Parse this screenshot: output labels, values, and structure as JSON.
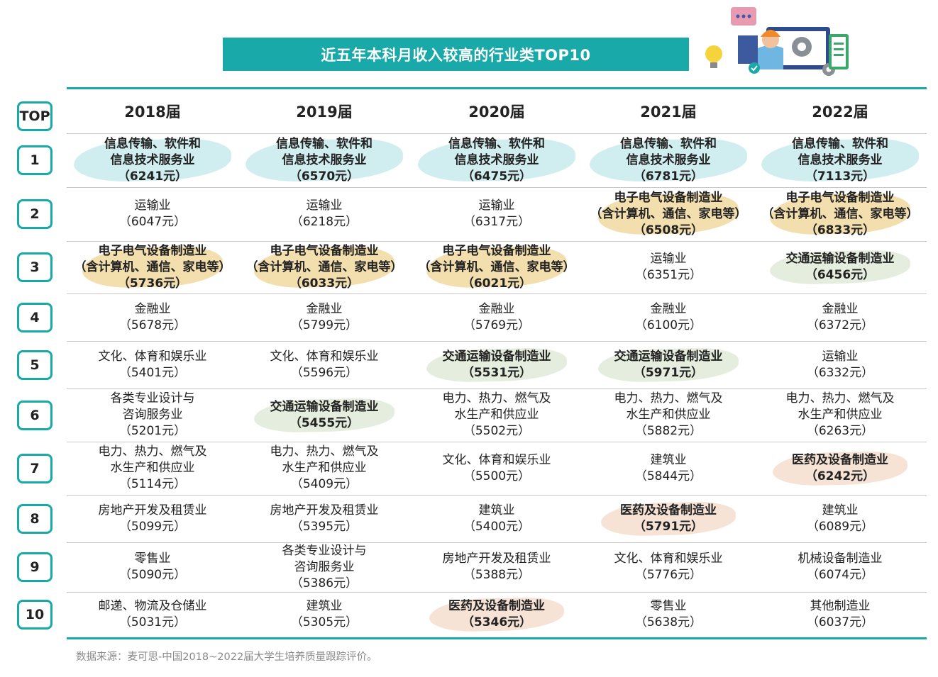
{
  "title": "近五年本科月收入较高的行业类TOP10",
  "header": {
    "top_label": "TOP",
    "years": [
      "2018届",
      "2019届",
      "2020届",
      "2021届",
      "2022届"
    ]
  },
  "rows": [
    {
      "rank": "1",
      "cells": [
        {
          "lines": [
            "信息传输、软件和",
            "信息技术服务业",
            "（6241元）"
          ],
          "highlight": "blue"
        },
        {
          "lines": [
            "信息传输、软件和",
            "信息技术服务业",
            "（6570元）"
          ],
          "highlight": "blue"
        },
        {
          "lines": [
            "信息传输、软件和",
            "信息技术服务业",
            "（6475元）"
          ],
          "highlight": "blue"
        },
        {
          "lines": [
            "信息传输、软件和",
            "信息技术服务业",
            "（6781元）"
          ],
          "highlight": "blue"
        },
        {
          "lines": [
            "信息传输、软件和",
            "信息技术服务业",
            "（7113元）"
          ],
          "highlight": "blue"
        }
      ]
    },
    {
      "rank": "2",
      "cells": [
        {
          "lines": [
            "运输业",
            "（6047元）"
          ],
          "highlight": ""
        },
        {
          "lines": [
            "运输业",
            "（6218元）"
          ],
          "highlight": ""
        },
        {
          "lines": [
            "运输业",
            "（6317元）"
          ],
          "highlight": ""
        },
        {
          "lines": [
            "电子电气设备制造业",
            "（含计算机、通信、家电等）",
            "（6508元）"
          ],
          "highlight": "yellow"
        },
        {
          "lines": [
            "电子电气设备制造业",
            "（含计算机、通信、家电等）",
            "（6833元）"
          ],
          "highlight": "yellow"
        }
      ]
    },
    {
      "rank": "3",
      "cells": [
        {
          "lines": [
            "电子电气设备制造业",
            "（含计算机、通信、家电等）",
            "（5736元）"
          ],
          "highlight": "yellow"
        },
        {
          "lines": [
            "电子电气设备制造业",
            "（含计算机、通信、家电等）",
            "（6033元）"
          ],
          "highlight": "yellow"
        },
        {
          "lines": [
            "电子电气设备制造业",
            "（含计算机、通信、家电等）",
            "（6021元）"
          ],
          "highlight": "yellow"
        },
        {
          "lines": [
            "运输业",
            "（6351元）"
          ],
          "highlight": ""
        },
        {
          "lines": [
            "交通运输设备制造业",
            "（6456元）"
          ],
          "highlight": "green"
        }
      ]
    },
    {
      "rank": "4",
      "cells": [
        {
          "lines": [
            "金融业",
            "（5678元）"
          ],
          "highlight": ""
        },
        {
          "lines": [
            "金融业",
            "（5799元）"
          ],
          "highlight": ""
        },
        {
          "lines": [
            "金融业",
            "（5769元）"
          ],
          "highlight": ""
        },
        {
          "lines": [
            "金融业",
            "（6100元）"
          ],
          "highlight": ""
        },
        {
          "lines": [
            "金融业",
            "（6372元）"
          ],
          "highlight": ""
        }
      ]
    },
    {
      "rank": "5",
      "cells": [
        {
          "lines": [
            "文化、体育和娱乐业",
            "（5401元）"
          ],
          "highlight": ""
        },
        {
          "lines": [
            "文化、体育和娱乐业",
            "（5596元）"
          ],
          "highlight": ""
        },
        {
          "lines": [
            "交通运输设备制造业",
            "（5531元）"
          ],
          "highlight": "green"
        },
        {
          "lines": [
            "交通运输设备制造业",
            "（5971元）"
          ],
          "highlight": "green"
        },
        {
          "lines": [
            "运输业",
            "（6332元）"
          ],
          "highlight": ""
        }
      ]
    },
    {
      "rank": "6",
      "cells": [
        {
          "lines": [
            "各类专业设计与",
            "咨询服务业",
            "（5201元）"
          ],
          "highlight": ""
        },
        {
          "lines": [
            "交通运输设备制造业",
            "（5455元）"
          ],
          "highlight": "green"
        },
        {
          "lines": [
            "电力、热力、燃气及",
            "水生产和供应业",
            "（5502元）"
          ],
          "highlight": ""
        },
        {
          "lines": [
            "电力、热力、燃气及",
            "水生产和供应业",
            "（5882元）"
          ],
          "highlight": ""
        },
        {
          "lines": [
            "电力、热力、燃气及",
            "水生产和供应业",
            "（6263元）"
          ],
          "highlight": ""
        }
      ]
    },
    {
      "rank": "7",
      "cells": [
        {
          "lines": [
            "电力、热力、燃气及",
            "水生产和供应业",
            "（5114元）"
          ],
          "highlight": ""
        },
        {
          "lines": [
            "电力、热力、燃气及",
            "水生产和供应业",
            "（5409元）"
          ],
          "highlight": ""
        },
        {
          "lines": [
            "文化、体育和娱乐业",
            "（5500元）"
          ],
          "highlight": ""
        },
        {
          "lines": [
            "建筑业",
            "（5844元）"
          ],
          "highlight": ""
        },
        {
          "lines": [
            "医药及设备制造业",
            "（6242元）"
          ],
          "highlight": "peach"
        }
      ]
    },
    {
      "rank": "8",
      "cells": [
        {
          "lines": [
            "房地产开发及租赁业",
            "（5099元）"
          ],
          "highlight": ""
        },
        {
          "lines": [
            "房地产开发及租赁业",
            "（5395元）"
          ],
          "highlight": ""
        },
        {
          "lines": [
            "建筑业",
            "（5400元）"
          ],
          "highlight": ""
        },
        {
          "lines": [
            "医药及设备制造业",
            "（5791元）"
          ],
          "highlight": "peach"
        },
        {
          "lines": [
            "建筑业",
            "（6089元）"
          ],
          "highlight": ""
        }
      ]
    },
    {
      "rank": "9",
      "cells": [
        {
          "lines": [
            "零售业",
            "（5090元）"
          ],
          "highlight": ""
        },
        {
          "lines": [
            "各类专业设计与",
            "咨询服务业",
            "（5386元）"
          ],
          "highlight": ""
        },
        {
          "lines": [
            "房地产开发及租赁业",
            "（5388元）"
          ],
          "highlight": ""
        },
        {
          "lines": [
            "文化、体育和娱乐业",
            "（5776元）"
          ],
          "highlight": ""
        },
        {
          "lines": [
            "机械设备制造业",
            "（6074元）"
          ],
          "highlight": ""
        }
      ]
    },
    {
      "rank": "10",
      "cells": [
        {
          "lines": [
            "邮递、物流及仓储业",
            "（5031元）"
          ],
          "highlight": ""
        },
        {
          "lines": [
            "建筑业",
            "（5305元）"
          ],
          "highlight": ""
        },
        {
          "lines": [
            "医药及设备制造业",
            "（5346元）"
          ],
          "highlight": "peach"
        },
        {
          "lines": [
            "零售业",
            "（5638元）"
          ],
          "highlight": ""
        },
        {
          "lines": [
            "其他制造业",
            "（6037元）"
          ],
          "highlight": ""
        }
      ]
    }
  ],
  "source": "数据来源：麦可思-中国2018~2022届大学生培养质量跟踪评价。",
  "colors": {
    "accent": "#19a9a9",
    "highlight_blue": "#c4e8ec",
    "highlight_yellow": "#f0d79a",
    "highlight_green": "#dde9d6",
    "highlight_peach": "#f4dccb"
  },
  "illustration_icons": [
    "chat-bubble-icon",
    "lightbulb-icon",
    "worker-avatar-icon",
    "gear-icon",
    "monitor-icon",
    "checklist-icon"
  ]
}
